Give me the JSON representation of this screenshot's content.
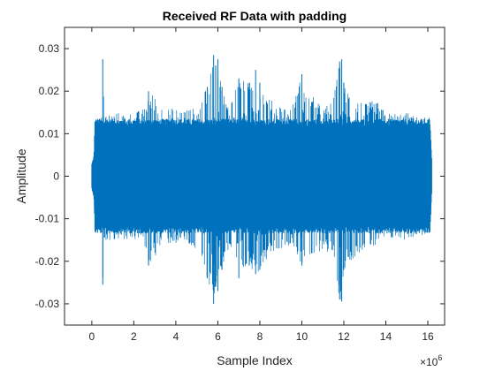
{
  "chart_data": {
    "type": "line",
    "title": "Received RF Data with padding",
    "xlabel": "Sample Index",
    "ylabel": "Amplitude",
    "x_exponent_label": "×10",
    "x_exponent_value": "6",
    "x_scale": 1000000,
    "xlim": [
      -1.3,
      16.8
    ],
    "ylim": [
      -0.035,
      0.035
    ],
    "xticks": [
      0,
      2,
      4,
      6,
      8,
      10,
      12,
      14,
      16
    ],
    "xtick_labels": [
      "0",
      "2",
      "4",
      "6",
      "8",
      "10",
      "12",
      "14",
      "16"
    ],
    "yticks": [
      -0.03,
      -0.02,
      -0.01,
      0,
      0.01,
      0.02,
      0.03
    ],
    "ytick_labels": [
      "-0.03",
      "-0.02",
      "-0.01",
      "0",
      "0.01",
      "0.02",
      "0.03"
    ],
    "grid": false,
    "legend": "none",
    "series": [
      {
        "color": "#0072BD",
        "description_envelope": {
          "x": [
            0,
            0.1,
            0.15,
            0.5,
            0.52,
            0.6,
            1.0,
            2.0,
            2.5,
            2.7,
            3.0,
            3.2,
            3.5,
            4.0,
            4.5,
            5.0,
            5.5,
            5.8,
            5.9,
            6.0,
            6.2,
            6.5,
            7.0,
            7.5,
            7.8,
            8.0,
            8.5,
            9.0,
            9.5,
            10.0,
            10.2,
            10.5,
            11.0,
            11.5,
            11.8,
            11.9,
            12.0,
            12.5,
            13.0,
            13.5,
            14.0,
            14.5,
            15.0,
            15.5,
            16.0,
            16.1,
            16.2
          ],
          "upper": [
            0.003,
            0.005,
            0.014,
            0.014,
            0.0275,
            0.015,
            0.015,
            0.015,
            0.016,
            0.02,
            0.019,
            0.017,
            0.016,
            0.016,
            0.016,
            0.016,
            0.021,
            0.0285,
            0.026,
            0.0275,
            0.021,
            0.017,
            0.023,
            0.022,
            0.025,
            0.022,
            0.018,
            0.017,
            0.016,
            0.024,
            0.019,
            0.019,
            0.016,
            0.018,
            0.027,
            0.0275,
            0.022,
            0.019,
            0.017,
            0.018,
            0.015,
            0.015,
            0.015,
            0.014,
            0.014,
            0.014,
            0.003
          ],
          "lower": [
            -0.003,
            -0.005,
            -0.014,
            -0.014,
            -0.0255,
            -0.015,
            -0.015,
            -0.015,
            -0.016,
            -0.021,
            -0.019,
            -0.017,
            -0.016,
            -0.016,
            -0.016,
            -0.018,
            -0.024,
            -0.03,
            -0.026,
            -0.027,
            -0.022,
            -0.018,
            -0.024,
            -0.021,
            -0.023,
            -0.022,
            -0.018,
            -0.017,
            -0.016,
            -0.021,
            -0.019,
            -0.02,
            -0.017,
            -0.019,
            -0.029,
            -0.0295,
            -0.022,
            -0.019,
            -0.017,
            -0.017,
            -0.015,
            -0.015,
            -0.015,
            -0.014,
            -0.014,
            -0.014,
            -0.003
          ]
        }
      }
    ]
  }
}
